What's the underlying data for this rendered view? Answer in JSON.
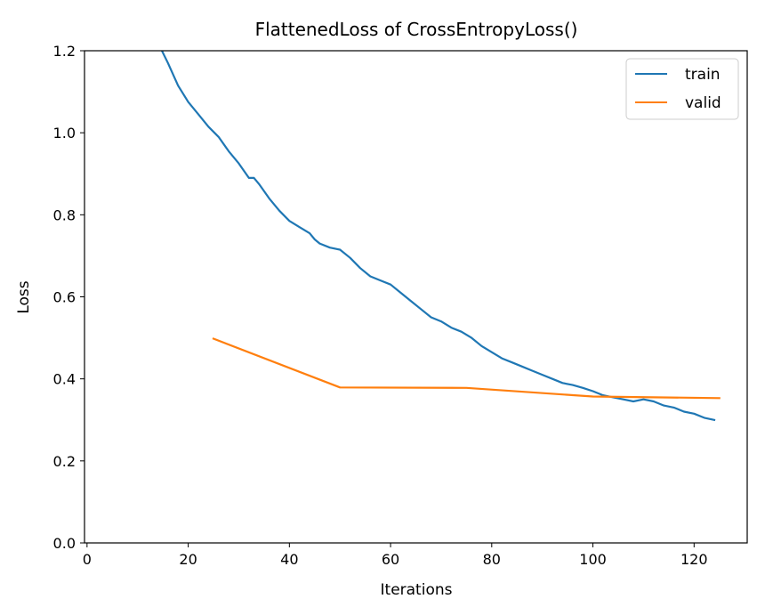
{
  "chart_data": {
    "type": "line",
    "title": "FlattenedLoss of CrossEntropyLoss()",
    "xlabel": "Iterations",
    "ylabel": "Loss",
    "xlim": [
      -0.5,
      130.5
    ],
    "ylim": [
      0.0,
      1.2
    ],
    "xticks": [
      0,
      20,
      40,
      60,
      80,
      100,
      120
    ],
    "yticks": [
      0.0,
      0.2,
      0.4,
      0.6,
      0.8,
      1.0,
      1.2
    ],
    "grid": false,
    "legend": "top-right",
    "series": [
      {
        "name": "train",
        "color": "#1f77b4",
        "x": [
          14,
          16,
          18,
          20,
          22,
          24,
          26,
          28,
          30,
          32,
          33,
          34,
          36,
          38,
          40,
          42,
          44,
          45,
          46,
          48,
          50,
          52,
          54,
          56,
          58,
          60,
          62,
          64,
          66,
          68,
          70,
          72,
          74,
          76,
          78,
          80,
          82,
          84,
          86,
          88,
          90,
          92,
          94,
          96,
          98,
          100,
          102,
          104,
          106,
          108,
          110,
          112,
          114,
          116,
          118,
          120,
          122,
          124
        ],
        "values": [
          1.22,
          1.17,
          1.115,
          1.075,
          1.045,
          1.015,
          0.99,
          0.955,
          0.925,
          0.89,
          0.89,
          0.875,
          0.84,
          0.81,
          0.785,
          0.77,
          0.755,
          0.74,
          0.73,
          0.72,
          0.715,
          0.695,
          0.67,
          0.65,
          0.64,
          0.63,
          0.61,
          0.59,
          0.57,
          0.55,
          0.54,
          0.525,
          0.515,
          0.5,
          0.48,
          0.465,
          0.45,
          0.44,
          0.43,
          0.42,
          0.41,
          0.4,
          0.39,
          0.385,
          0.378,
          0.37,
          0.36,
          0.355,
          0.35,
          0.345,
          0.35,
          0.345,
          0.335,
          0.33,
          0.32,
          0.315,
          0.305,
          0.3
        ]
      },
      {
        "name": "valid",
        "color": "#ff7f0e",
        "x": [
          25,
          50,
          75,
          100,
          125
        ],
        "values": [
          0.498,
          0.379,
          0.378,
          0.357,
          0.353
        ]
      }
    ]
  }
}
